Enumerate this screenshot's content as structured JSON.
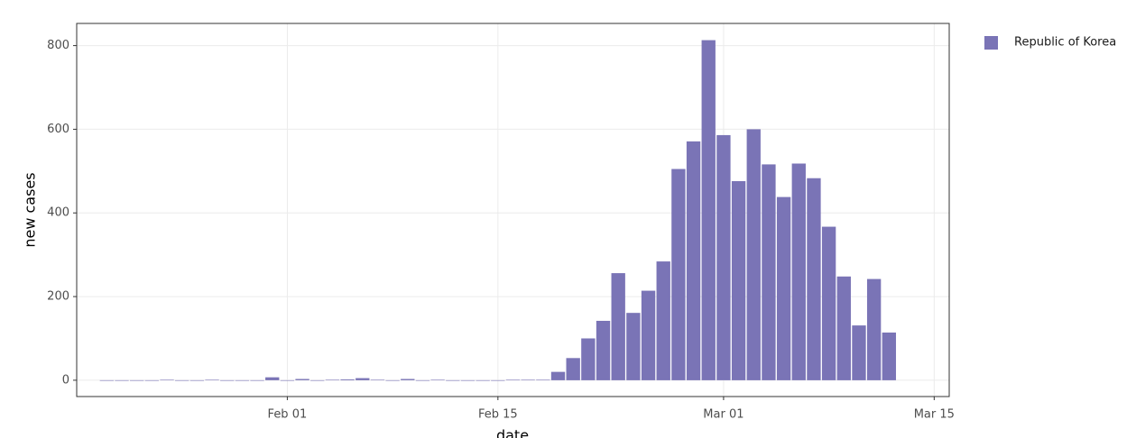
{
  "chart_data": {
    "type": "bar",
    "x": [
      "Jan 20",
      "Jan 21",
      "Jan 22",
      "Jan 23",
      "Jan 24",
      "Jan 25",
      "Jan 26",
      "Jan 27",
      "Jan 28",
      "Jan 29",
      "Jan 30",
      "Jan 31",
      "Feb 01",
      "Feb 02",
      "Feb 03",
      "Feb 04",
      "Feb 05",
      "Feb 06",
      "Feb 07",
      "Feb 08",
      "Feb 09",
      "Feb 10",
      "Feb 11",
      "Feb 12",
      "Feb 13",
      "Feb 14",
      "Feb 15",
      "Feb 16",
      "Feb 17",
      "Feb 18",
      "Feb 19",
      "Feb 20",
      "Feb 21",
      "Feb 22",
      "Feb 23",
      "Feb 24",
      "Feb 25",
      "Feb 26",
      "Feb 27",
      "Feb 28",
      "Feb 29",
      "Mar 01",
      "Mar 02",
      "Mar 03",
      "Mar 04",
      "Mar 05",
      "Mar 06",
      "Mar 07",
      "Mar 08",
      "Mar 09",
      "Mar 10",
      "Mar 11",
      "Mar 12"
    ],
    "series": [
      {
        "name": "Republic of Korea",
        "color": "#7a74b6",
        "values": [
          0,
          0,
          0,
          0,
          1,
          0,
          0,
          1,
          0,
          0,
          0,
          7,
          0,
          3,
          0,
          1,
          2,
          5,
          1,
          0,
          3,
          0,
          1,
          0,
          0,
          0,
          0,
          1,
          1,
          1,
          20,
          53,
          100,
          142,
          256,
          161,
          214,
          284,
          505,
          571,
          813,
          586,
          476,
          600,
          516,
          438,
          518,
          483,
          367,
          248,
          131,
          242,
          114
        ]
      }
    ],
    "xlabel": "date",
    "ylabel": "new cases",
    "xlim": [
      "Jan 18",
      "Mar 16"
    ],
    "xticks": [
      "Feb 01",
      "Feb 15",
      "Mar 01",
      "Mar 15"
    ],
    "ylim": [
      -39,
      853
    ],
    "yticks": [
      0,
      200,
      400,
      600,
      800
    ],
    "grid": true,
    "legend": "right"
  }
}
